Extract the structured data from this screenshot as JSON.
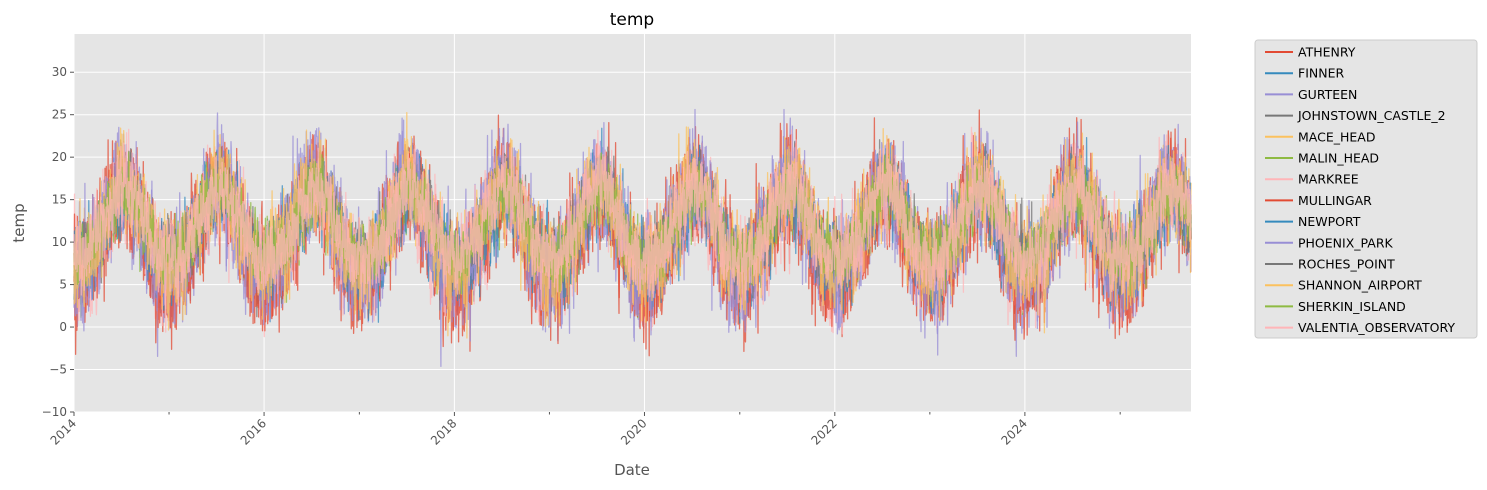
{
  "chart_data": {
    "type": "line",
    "title": "temp",
    "xlabel": "Date",
    "ylabel": "temp",
    "x_range": [
      "2014-01-01",
      "2025-09-30"
    ],
    "x_ticks": [
      {
        "date": "2014-01-01",
        "label": "2014"
      },
      {
        "date": "2016-01-01",
        "label": "2016"
      },
      {
        "date": "2018-01-01",
        "label": "2018"
      },
      {
        "date": "2020-01-01",
        "label": "2020"
      },
      {
        "date": "2022-01-01",
        "label": "2022"
      },
      {
        "date": "2024-01-01",
        "label": "2024"
      }
    ],
    "x_minor_tick_dates": [
      "2015-01-01",
      "2017-01-01",
      "2019-01-01",
      "2021-01-01",
      "2023-01-01",
      "2025-01-01"
    ],
    "ylim": [
      -10,
      34.5
    ],
    "y_ticks": [
      -10,
      -5,
      0,
      5,
      10,
      15,
      20,
      25,
      30
    ],
    "grid": true,
    "legend_position": "outside-right",
    "series": [
      {
        "name": "ATHENRY",
        "color": "#E24A33",
        "seasonal_mean": [
          6,
          6.5,
          8,
          10,
          12.5,
          15,
          16.5,
          16,
          14,
          11,
          8.5,
          6.5
        ],
        "amplitude": 6.5
      },
      {
        "name": "FINNER",
        "color": "#348ABD",
        "seasonal_mean": [
          7,
          7,
          8,
          10,
          12.5,
          14.5,
          16,
          16,
          14.5,
          12,
          9.5,
          7.5
        ],
        "amplitude": 4.5
      },
      {
        "name": "GURTEEN",
        "color": "#988ED5",
        "seasonal_mean": [
          5.5,
          6,
          7.5,
          9.5,
          12.5,
          15,
          16.5,
          16,
          14,
          11,
          8,
          6
        ],
        "amplitude": 6.5
      },
      {
        "name": "JOHNSTOWN_CASTLE_2",
        "color": "#777777",
        "seasonal_mean": [
          7,
          7,
          8,
          10,
          12.5,
          15,
          16.5,
          16.5,
          14.5,
          12,
          9.5,
          7.5
        ],
        "amplitude": 4.5
      },
      {
        "name": "MACE_HEAD",
        "color": "#FBC15E",
        "seasonal_mean": [
          8,
          8,
          9,
          10.5,
          12.5,
          14.5,
          16,
          16,
          14.5,
          12.5,
          10,
          8.5
        ],
        "amplitude": 4.5
      },
      {
        "name": "MALIN_HEAD",
        "color": "#8EBA42",
        "seasonal_mean": [
          7,
          7,
          8,
          9.5,
          11.5,
          13.5,
          15,
          15,
          14,
          11.5,
          9,
          7.5
        ],
        "amplitude": 4
      },
      {
        "name": "MARKREE",
        "color": "#FFB5B8",
        "seasonal_mean": [
          6,
          6.5,
          7.5,
          9.5,
          12,
          14.5,
          16,
          15.5,
          13.5,
          11,
          8,
          6.5
        ],
        "amplitude": 6
      },
      {
        "name": "MULLINGAR",
        "color": "#E24A33",
        "seasonal_mean": [
          5,
          5.5,
          7,
          9.5,
          12,
          15,
          16.5,
          16,
          13.5,
          10.5,
          7.5,
          5.5
        ],
        "amplitude": 7
      },
      {
        "name": "NEWPORT",
        "color": "#348ABD",
        "seasonal_mean": [
          7,
          7,
          8,
          10,
          12.5,
          14.5,
          16,
          16,
          14,
          11.5,
          9,
          7.5
        ],
        "amplitude": 5
      },
      {
        "name": "PHOENIX_PARK",
        "color": "#988ED5",
        "seasonal_mean": [
          6,
          6.5,
          8,
          10,
          12.5,
          15.5,
          17,
          16.5,
          14.5,
          11.5,
          8.5,
          6.5
        ],
        "amplitude": 6.5
      },
      {
        "name": "ROCHES_POINT",
        "color": "#777777",
        "seasonal_mean": [
          8,
          8,
          9,
          10.5,
          12.5,
          15,
          16.5,
          16.5,
          15,
          12.5,
          10,
          8.5
        ],
        "amplitude": 4
      },
      {
        "name": "SHANNON_AIRPORT",
        "color": "#FBC15E",
        "seasonal_mean": [
          7,
          7.5,
          8.5,
          10.5,
          13,
          15.5,
          17,
          16.5,
          14.5,
          12,
          9,
          7.5
        ],
        "amplitude": 6
      },
      {
        "name": "SHERKIN_ISLAND",
        "color": "#8EBA42",
        "seasonal_mean": [
          8.5,
          8.5,
          9,
          10.5,
          12.5,
          14.5,
          16,
          16,
          15,
          13,
          10.5,
          9
        ],
        "amplitude": 3.5
      },
      {
        "name": "VALENTIA_OBSERVATORY",
        "color": "#FFB5B8",
        "seasonal_mean": [
          8,
          8,
          9,
          10.5,
          13,
          15,
          16.5,
          16.5,
          15,
          12.5,
          10,
          8.5
        ],
        "amplitude": 5
      }
    ]
  }
}
